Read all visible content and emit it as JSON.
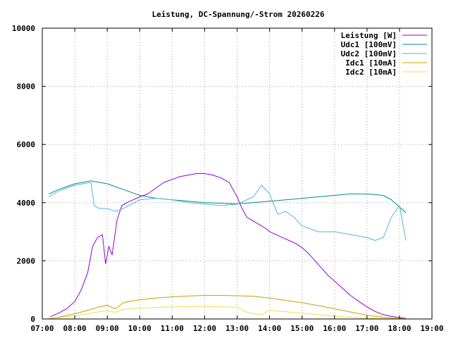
{
  "chart_data": {
    "type": "line",
    "title": "Leistung, DC-Spannung/-Strom 20260226",
    "xlabel": "",
    "ylabel": "",
    "xlim": [
      7,
      19
    ],
    "ylim": [
      0,
      10000
    ],
    "x_ticks": [
      "07:00",
      "08:00",
      "09:00",
      "10:00",
      "11:00",
      "12:00",
      "13:00",
      "14:00",
      "15:00",
      "16:00",
      "17:00",
      "18:00",
      "19:00"
    ],
    "y_ticks": [
      0,
      2000,
      4000,
      6000,
      8000,
      10000
    ],
    "grid": true,
    "legend_position": "top-right",
    "series": [
      {
        "name": "Leistung [W]",
        "color": "#9400d3",
        "x": [
          7.25,
          7.5,
          7.75,
          8.0,
          8.2,
          8.4,
          8.55,
          8.7,
          8.85,
          8.95,
          9.05,
          9.15,
          9.3,
          9.45,
          9.6,
          9.8,
          10.0,
          10.25,
          10.5,
          10.75,
          11.0,
          11.25,
          11.5,
          11.75,
          12.0,
          12.25,
          12.5,
          12.75,
          13.0,
          13.15,
          13.3,
          13.45,
          13.6,
          13.75,
          13.9,
          14.0,
          14.2,
          14.4,
          14.6,
          14.8,
          15.0,
          15.2,
          15.4,
          15.6,
          15.8,
          16.0,
          16.25,
          16.5,
          16.75,
          17.0,
          17.25,
          17.5,
          17.75,
          18.0,
          18.2
        ],
        "y": [
          80,
          200,
          350,
          600,
          1000,
          1600,
          2500,
          2800,
          2900,
          1900,
          2500,
          2200,
          3400,
          3900,
          4000,
          4100,
          4200,
          4300,
          4500,
          4700,
          4800,
          4900,
          4950,
          5000,
          5000,
          4950,
          4850,
          4700,
          4200,
          3800,
          3500,
          3400,
          3300,
          3200,
          3100,
          3000,
          2900,
          2800,
          2700,
          2600,
          2450,
          2250,
          2000,
          1750,
          1500,
          1300,
          1050,
          800,
          600,
          420,
          260,
          150,
          90,
          50,
          20
        ]
      },
      {
        "name": "Udc1 [100mV]",
        "color": "#008b8b",
        "x": [
          7.2,
          7.5,
          7.75,
          8.0,
          8.25,
          8.5,
          8.75,
          9.0,
          9.25,
          9.5,
          9.75,
          10.0,
          10.5,
          11.0,
          11.5,
          12.0,
          12.5,
          13.0,
          13.5,
          14.0,
          14.5,
          15.0,
          15.5,
          16.0,
          16.5,
          17.0,
          17.5,
          17.75,
          18.0,
          18.2
        ],
        "y": [
          4300,
          4450,
          4550,
          4650,
          4700,
          4750,
          4700,
          4650,
          4550,
          4450,
          4350,
          4250,
          4150,
          4100,
          4050,
          4000,
          3980,
          3960,
          4000,
          4050,
          4100,
          4150,
          4200,
          4250,
          4300,
          4300,
          4250,
          4100,
          3850,
          3650
        ]
      },
      {
        "name": "Udc2 [100mV]",
        "color": "#4db8d6",
        "x": [
          7.2,
          7.5,
          7.75,
          8.0,
          8.25,
          8.5,
          8.6,
          8.75,
          9.0,
          9.25,
          9.5,
          9.75,
          10.0,
          10.5,
          11.0,
          11.5,
          12.0,
          12.5,
          13.0,
          13.5,
          13.75,
          14.0,
          14.25,
          14.5,
          14.75,
          15.0,
          15.25,
          15.5,
          16.0,
          16.5,
          17.0,
          17.25,
          17.5,
          17.75,
          18.0,
          18.2
        ],
        "y": [
          4200,
          4400,
          4500,
          4600,
          4650,
          4700,
          3900,
          3800,
          3800,
          3700,
          3800,
          3950,
          4100,
          4150,
          4100,
          4000,
          3950,
          3900,
          3950,
          4200,
          4600,
          4300,
          3600,
          3700,
          3500,
          3200,
          3100,
          3000,
          3000,
          2900,
          2800,
          2700,
          2800,
          3500,
          3900,
          2700
        ]
      },
      {
        "name": "Idc1 [10mA]",
        "color": "#c8a000",
        "x": [
          7.2,
          7.5,
          8.0,
          8.5,
          8.75,
          9.0,
          9.25,
          9.5,
          9.75,
          10.0,
          10.5,
          11.0,
          11.5,
          12.0,
          12.5,
          13.0,
          13.5,
          14.0,
          14.5,
          15.0,
          15.5,
          16.0,
          16.5,
          17.0,
          17.5,
          18.0,
          18.2
        ],
        "y": [
          20,
          60,
          180,
          330,
          420,
          470,
          350,
          560,
          620,
          660,
          720,
          760,
          790,
          810,
          810,
          800,
          780,
          720,
          640,
          560,
          460,
          350,
          240,
          130,
          60,
          20,
          5
        ]
      },
      {
        "name": "Idc2 [10mA]",
        "color": "#f0e040",
        "x": [
          7.2,
          7.5,
          8.0,
          8.5,
          8.75,
          9.0,
          9.25,
          9.5,
          9.75,
          10.0,
          10.5,
          11.0,
          11.5,
          12.0,
          12.5,
          13.0,
          13.25,
          13.5,
          13.75,
          14.0,
          14.5,
          15.0,
          15.5,
          16.0,
          16.5,
          17.0,
          17.5,
          18.0,
          18.2
        ],
        "y": [
          10,
          40,
          110,
          200,
          250,
          280,
          230,
          330,
          350,
          370,
          400,
          420,
          430,
          430,
          420,
          410,
          250,
          180,
          150,
          300,
          250,
          200,
          150,
          100,
          60,
          30,
          15,
          5,
          2
        ]
      }
    ]
  }
}
